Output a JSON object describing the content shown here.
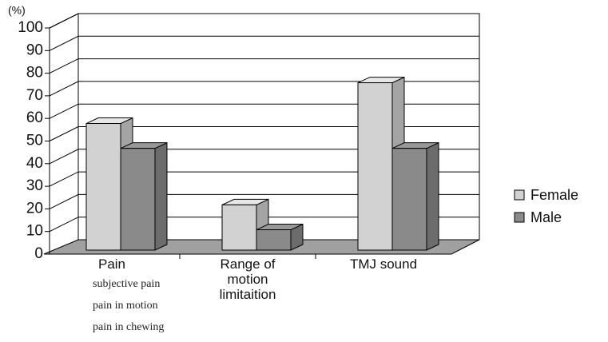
{
  "chart_data": {
    "type": "bar3d",
    "y_unit_label": "(%)",
    "categories": [
      "Pain",
      "Range of motion limitaition",
      "TMJ sound"
    ],
    "category_notes": [
      "subjective pain",
      "pain in motion",
      "pain in chewing"
    ],
    "series": [
      {
        "name": "Female",
        "color": "#d2d2d2",
        "values": [
          56,
          20,
          74
        ]
      },
      {
        "name": "Male",
        "color": "#8a8a8a",
        "values": [
          45,
          9,
          45
        ]
      }
    ],
    "ylim": [
      0,
      100
    ],
    "yticks": [
      0,
      10,
      20,
      30,
      40,
      50,
      60,
      70,
      80,
      90,
      100
    ],
    "grid": true,
    "legend": "right"
  }
}
